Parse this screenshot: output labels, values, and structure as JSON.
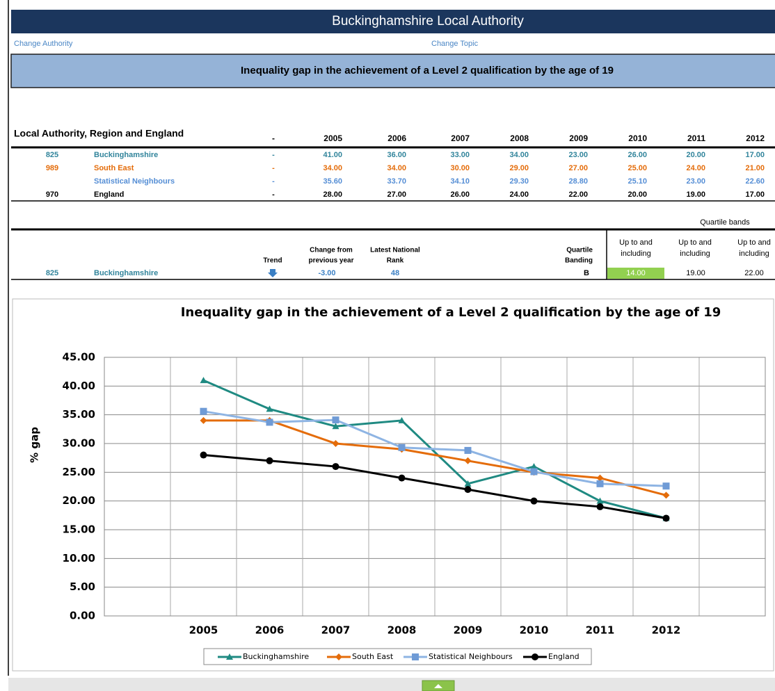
{
  "header": {
    "title": "Buckinghamshire Local Authority",
    "links": [
      "Change Authority",
      "Change Topic"
    ],
    "topic": "Inequality gap in the achievement of a Level 2 qualification by the age of 19"
  },
  "table": {
    "columns": [
      "Local Authority, Region and England",
      "-",
      "2005",
      "2006",
      "2007",
      "2008",
      "2009",
      "2010",
      "2011",
      "2012"
    ],
    "rows": [
      {
        "color": "#31849b",
        "cells": [
          "825",
          "Buckinghamshire",
          "-",
          "41.00",
          "36.00",
          "33.00",
          "34.00",
          "23.00",
          "26.00",
          "20.00",
          "17.00"
        ]
      },
      {
        "color": "#e46c0a",
        "cells": [
          "989",
          "South East",
          "-",
          "34.00",
          "34.00",
          "30.00",
          "29.00",
          "27.00",
          "25.00",
          "24.00",
          "21.00"
        ]
      },
      {
        "color": "#558ed5",
        "cells": [
          null,
          "Statistical Neighbours",
          "-",
          "35.60",
          "33.70",
          "34.10",
          "29.30",
          "28.80",
          "25.10",
          "23.00",
          "22.60"
        ]
      },
      {
        "color": "#000000",
        "cells": [
          "970",
          "England",
          "-",
          "28.00",
          "27.00",
          "26.00",
          "24.00",
          "22.00",
          "20.00",
          "19.00",
          "17.00"
        ]
      }
    ]
  },
  "summary": {
    "caption": "Quartile bands",
    "columns": [
      [
        "Trend"
      ],
      [
        "Change from",
        "previous year"
      ],
      [
        "Latest National",
        "Rank"
      ],
      [
        "Quartile",
        "Banding"
      ],
      [
        "Up to and",
        "including"
      ],
      [
        "Up to and",
        "including"
      ],
      [
        "Up to and",
        "including"
      ]
    ],
    "row": [
      "825",
      "Buckinghamshire",
      "-3.00",
      "48",
      "B",
      "14.00",
      "19.00",
      "22.00"
    ],
    "highlight": "#92d050"
  },
  "chart_data": {
    "type": "line",
    "title": "Inequality gap in the achievement of a Level 2 qualification by the age of 19",
    "y_label": "% gap",
    "categories": [
      null,
      "2005",
      "2006",
      "2007",
      "2008",
      "2009",
      "2010",
      "2011",
      "2012",
      null
    ],
    "series": [
      {
        "name": "Buckinghamshire",
        "color": "#1f8a82",
        "marker": "triangle",
        "values": [
          null,
          41,
          36,
          33,
          34,
          23,
          26,
          20,
          17,
          null
        ]
      },
      {
        "name": "South East",
        "color": "#e46c0a",
        "marker": "diamond",
        "values": [
          null,
          34,
          34,
          30,
          29,
          27,
          25,
          24,
          21,
          null
        ]
      },
      {
        "name": "Statistical Neighbours",
        "color": "#8eb4e3",
        "marker": "square",
        "values": [
          null,
          35.6,
          33.7,
          34.1,
          29.3,
          28.8,
          25.1,
          23,
          22.6,
          null
        ]
      },
      {
        "name": "England",
        "color": "#000000",
        "marker": "circle",
        "values": [
          null,
          28,
          27,
          26,
          24,
          22,
          20,
          19,
          17,
          null
        ]
      }
    ],
    "ylim": [
      0,
      45
    ],
    "yticks": [
      {
        "value": 0,
        "label": "0.00"
      },
      {
        "value": 5,
        "label": "5.00"
      },
      {
        "value": 10,
        "label": "10.00"
      },
      {
        "value": 15,
        "label": "15.00"
      },
      {
        "value": 20,
        "label": "20.00"
      },
      {
        "value": 25,
        "label": "25.00"
      },
      {
        "value": 30,
        "label": "30.00"
      },
      {
        "value": 35,
        "label": "35.00"
      },
      {
        "value": 40,
        "label": "40.00"
      },
      {
        "value": 45,
        "label": "45.00"
      }
    ],
    "grid": true,
    "legend": "bottom"
  }
}
